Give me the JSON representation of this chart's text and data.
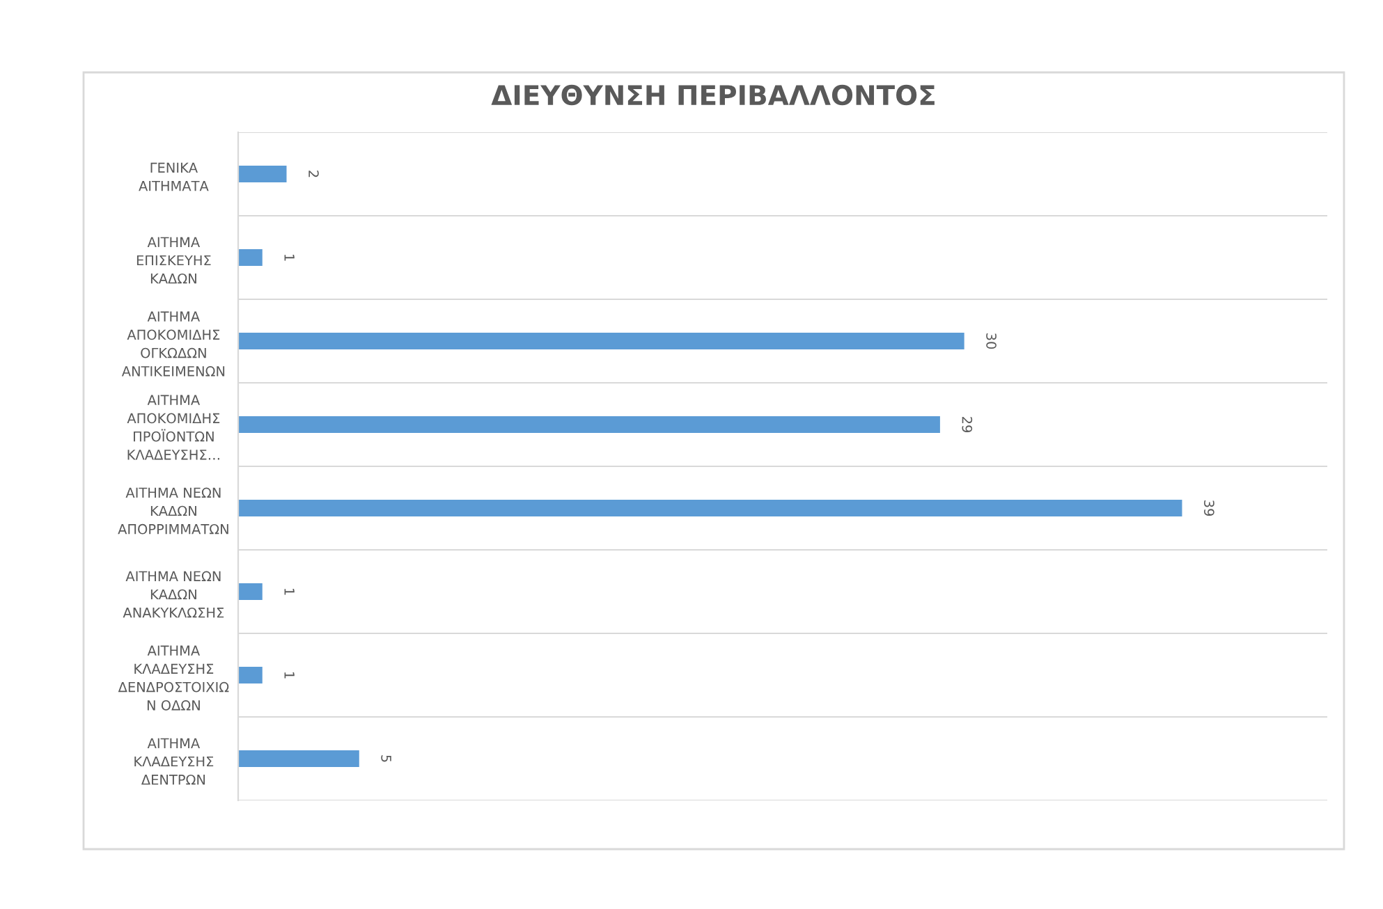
{
  "chart_data": {
    "type": "bar",
    "orientation": "horizontal",
    "title": "ΔΙΕΥΘΥΝΣΗ ΠΕΡΙΒΑΛΛΟΝΤΟΣ",
    "categories": [
      "ΓΕΝΙΚΑ\nΑΙΤΗΜΑΤΑ",
      "ΑΙΤΗΜΑ\nΕΠΙΣΚΕΥΗΣ\nΚΑΔΩΝ",
      "ΑΙΤΗΜΑ\nΑΠΟΚΟΜΙΔΗΣ\nΟΓΚΩΔΩΝ\nΑΝΤΙΚΕΙΜΕΝΩΝ",
      "ΑΙΤΗΜΑ\nΑΠΟΚΟΜΙΔΗΣ\nΠΡΟΪΟΝΤΩΝ\nΚΛΑΔΕΥΣΗΣ…",
      "ΑΙΤΗΜΑ ΝΕΩΝ\nΚΑΔΩΝ\nΑΠΟΡΡΙΜΜΑΤΩΝ",
      "ΑΙΤΗΜΑ ΝΕΩΝ\nΚΑΔΩΝ\nΑΝΑΚΥΚΛΩΣΗΣ",
      "ΑΙΤΗΜΑ\nΚΛΑΔΕΥΣΗΣ\nΔΕΝΔΡΟΣΤΟΙΧΙΩ\nΝ ΟΔΩΝ",
      "ΑΙΤΗΜΑ\nΚΛΑΔΕΥΣΗΣ\nΔΕΝΤΡΩΝ"
    ],
    "values": [
      2,
      1,
      30,
      29,
      39,
      1,
      1,
      5
    ],
    "color": "#5b9bd5",
    "xlim": [
      0,
      45
    ],
    "tick_labels": "y",
    "grid": "y",
    "data_labels": true
  }
}
